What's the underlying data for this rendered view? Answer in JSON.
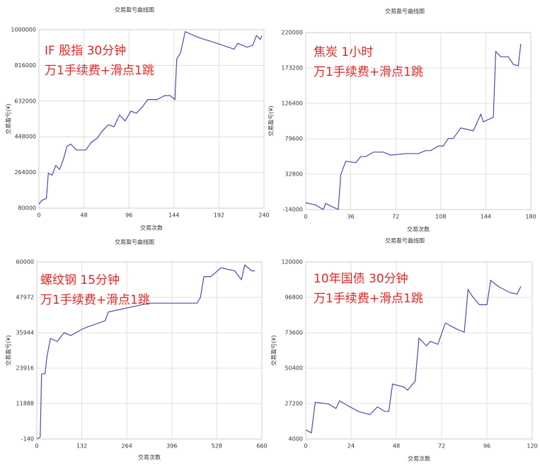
{
  "chart_data": [
    {
      "type": "line",
      "title": "交易盈亏曲线图",
      "x_label": "交易次数",
      "y_label": "交易盈亏(¥)",
      "annotations": [
        "IF 股指  30分钟",
        "万1手续费+滑点1跳"
      ],
      "x": [
        0,
        3,
        8,
        10,
        14,
        18,
        22,
        26,
        30,
        34,
        40,
        50,
        56,
        62,
        68,
        74,
        80,
        86,
        92,
        98,
        104,
        110,
        116,
        126,
        134,
        140,
        145,
        147,
        151,
        156,
        170,
        190,
        208,
        212,
        222,
        228,
        232,
        236,
        238
      ],
      "series": [
        {
          "name": "交易盈亏",
          "color": "#4b4bb0",
          "values": [
            100000,
            120000,
            130000,
            260000,
            250000,
            300000,
            280000,
            330000,
            400000,
            410000,
            380000,
            380000,
            420000,
            440000,
            480000,
            510000,
            500000,
            560000,
            530000,
            580000,
            570000,
            600000,
            640000,
            640000,
            660000,
            660000,
            640000,
            850000,
            880000,
            990000,
            960000,
            930000,
            900000,
            930000,
            910000,
            920000,
            970000,
            950000,
            970000
          ]
        }
      ],
      "xlim": [
        0,
        240
      ],
      "xticks": [
        0,
        48,
        96,
        144,
        192,
        240
      ],
      "ylim": [
        80000,
        1000000
      ],
      "yticks": [
        80000,
        264000,
        448000,
        632000,
        816000,
        1000000
      ],
      "grid": true
    },
    {
      "type": "line",
      "title": "交易盈亏曲线图",
      "x_label": "交易次数",
      "y_label": "交易盈亏(¥)",
      "annotations": [
        "焦炭  1小时",
        "万1手续费+滑点1跳"
      ],
      "x": [
        0,
        8,
        14,
        16,
        26,
        28,
        32,
        40,
        44,
        48,
        54,
        62,
        68,
        80,
        90,
        96,
        100,
        106,
        110,
        114,
        118,
        124,
        134,
        140,
        142,
        150,
        152,
        156,
        162,
        166,
        170,
        172
      ],
      "series": [
        {
          "name": "交易盈亏",
          "color": "#4b4bb0",
          "values": [
            -5000,
            -8000,
            -14000,
            -6000,
            -14000,
            32000,
            50000,
            48000,
            56000,
            56000,
            62000,
            62000,
            58000,
            60000,
            60000,
            64000,
            64000,
            70000,
            70000,
            80000,
            80000,
            94000,
            90000,
            112000,
            102000,
            108000,
            195000,
            188000,
            188000,
            178000,
            176000,
            205000
          ]
        }
      ],
      "xlim": [
        0,
        180
      ],
      "xticks": [
        0,
        36,
        72,
        108,
        144,
        180
      ],
      "ylim": [
        -14000,
        220000
      ],
      "yticks": [
        -14000,
        32800,
        79600,
        126400,
        173200,
        220000
      ],
      "grid": true
    },
    {
      "type": "line",
      "title": "交易盈亏曲线图",
      "x_label": "交易次数",
      "y_label": "交易盈亏(¥)",
      "annotations": [
        "螺纹钢  15分钟",
        "万1手续费+滑点1跳"
      ],
      "x": [
        0,
        10,
        14,
        24,
        30,
        40,
        60,
        80,
        100,
        130,
        150,
        200,
        210,
        250,
        290,
        330,
        380,
        420,
        470,
        480,
        490,
        510,
        540,
        580,
        600,
        610,
        630,
        640
      ],
      "series": [
        {
          "name": "交易盈亏",
          "color": "#4b4bb0",
          "values": [
            -140,
            500,
            22000,
            22000,
            28000,
            34000,
            33000,
            36000,
            35000,
            37000,
            38000,
            40000,
            43000,
            44000,
            45000,
            46000,
            46000,
            46000,
            46000,
            48000,
            55000,
            55000,
            58000,
            57000,
            54000,
            59000,
            57000,
            57000
          ]
        }
      ],
      "xlim": [
        0,
        660
      ],
      "xticks": [
        0,
        132,
        264,
        396,
        528,
        660
      ],
      "ylim": [
        -140,
        60000
      ],
      "yticks": [
        -140,
        11888,
        23916,
        35944,
        47972,
        60000
      ],
      "grid": true
    },
    {
      "type": "line",
      "title": "交易盈亏曲线图",
      "x_label": "交易次数",
      "y_label": "交易盈亏(¥)",
      "annotations": [
        "10年国债  30分钟",
        "万1手续费+滑点1跳"
      ],
      "x": [
        0,
        3,
        5,
        12,
        16,
        18,
        22,
        28,
        34,
        38,
        42,
        44,
        46,
        52,
        54,
        58,
        60,
        64,
        66,
        70,
        74,
        80,
        84,
        86,
        88,
        92,
        96,
        98,
        102,
        108,
        112,
        114
      ],
      "series": [
        {
          "name": "交易盈亏",
          "color": "#4b4bb0",
          "values": [
            10000,
            8000,
            28000,
            27000,
            24000,
            29000,
            26000,
            22000,
            20000,
            25000,
            22000,
            22000,
            40000,
            38000,
            36000,
            42000,
            70000,
            65000,
            68000,
            66000,
            80000,
            76000,
            74000,
            102000,
            98000,
            92000,
            92000,
            108000,
            104000,
            100000,
            99000,
            104000
          ]
        }
      ],
      "xlim": [
        0,
        120
      ],
      "xticks": [
        0,
        24,
        48,
        72,
        96,
        120
      ],
      "ylim": [
        4000,
        120000
      ],
      "yticks": [
        4000,
        27200,
        50400,
        73600,
        96800,
        120000
      ],
      "grid": true
    }
  ]
}
